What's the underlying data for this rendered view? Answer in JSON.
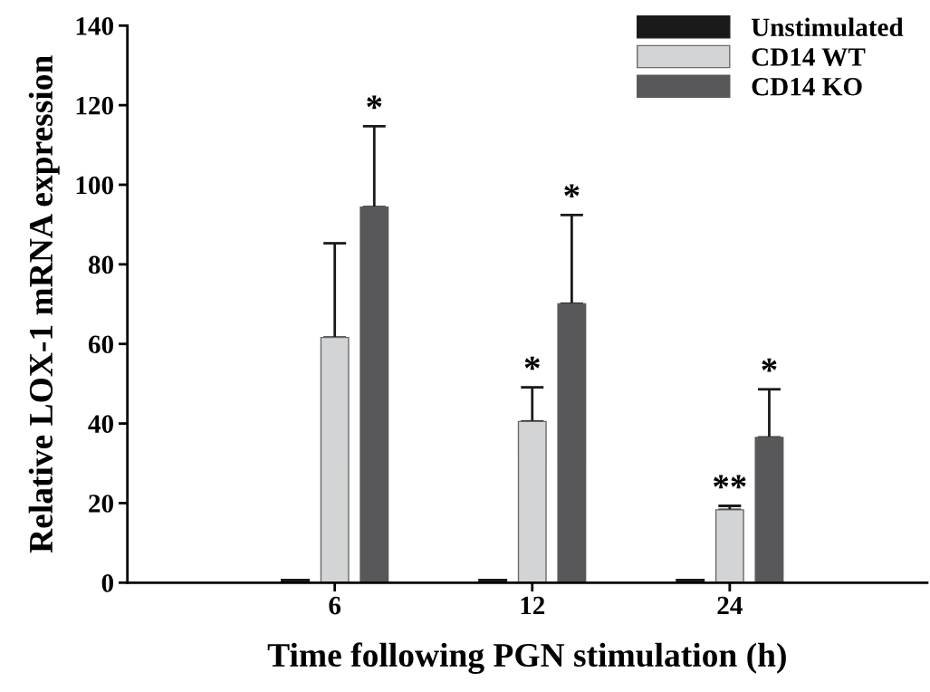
{
  "chart_data": {
    "type": "bar",
    "xlabel": "Time following PGN stimulation (h)",
    "ylabel": "Relative LOX-1 mRNA expression",
    "categories": [
      "6",
      "12",
      "24"
    ],
    "series": [
      {
        "name": "Unstimulated",
        "color": "#1a1a1a",
        "values": [
          0.8,
          0.8,
          0.8
        ]
      },
      {
        "name": "CD14 WT",
        "color": "#d3d4d6",
        "values": [
          61.6,
          40.5,
          18.3
        ],
        "errors": [
          [
            61.6,
            85.3
          ],
          [
            40.5,
            49.1
          ],
          [
            18.3,
            19.3
          ]
        ]
      },
      {
        "name": "CD14 KO",
        "color": "#58585a",
        "values": [
          94.4,
          70.1,
          36.5
        ],
        "errors": [
          [
            94.4,
            114.7
          ],
          [
            70.1,
            92.4
          ],
          [
            36.5,
            48.6
          ]
        ]
      }
    ],
    "ylim": [
      0,
      140
    ],
    "yticks": [
      0,
      20,
      40,
      60,
      80,
      100,
      120,
      140
    ],
    "grid": false,
    "legend": "top right",
    "annotations": [
      {
        "text": "*",
        "y": 94.4
      },
      {
        "text": "*",
        "x": "12",
        "y": 40.5
      },
      {
        "text": "*",
        "y": 92.4
      },
      {
        "text": "**",
        "x": "24",
        "y": 18.3
      },
      {
        "text": "*",
        "y": 36.5
      }
    ]
  }
}
